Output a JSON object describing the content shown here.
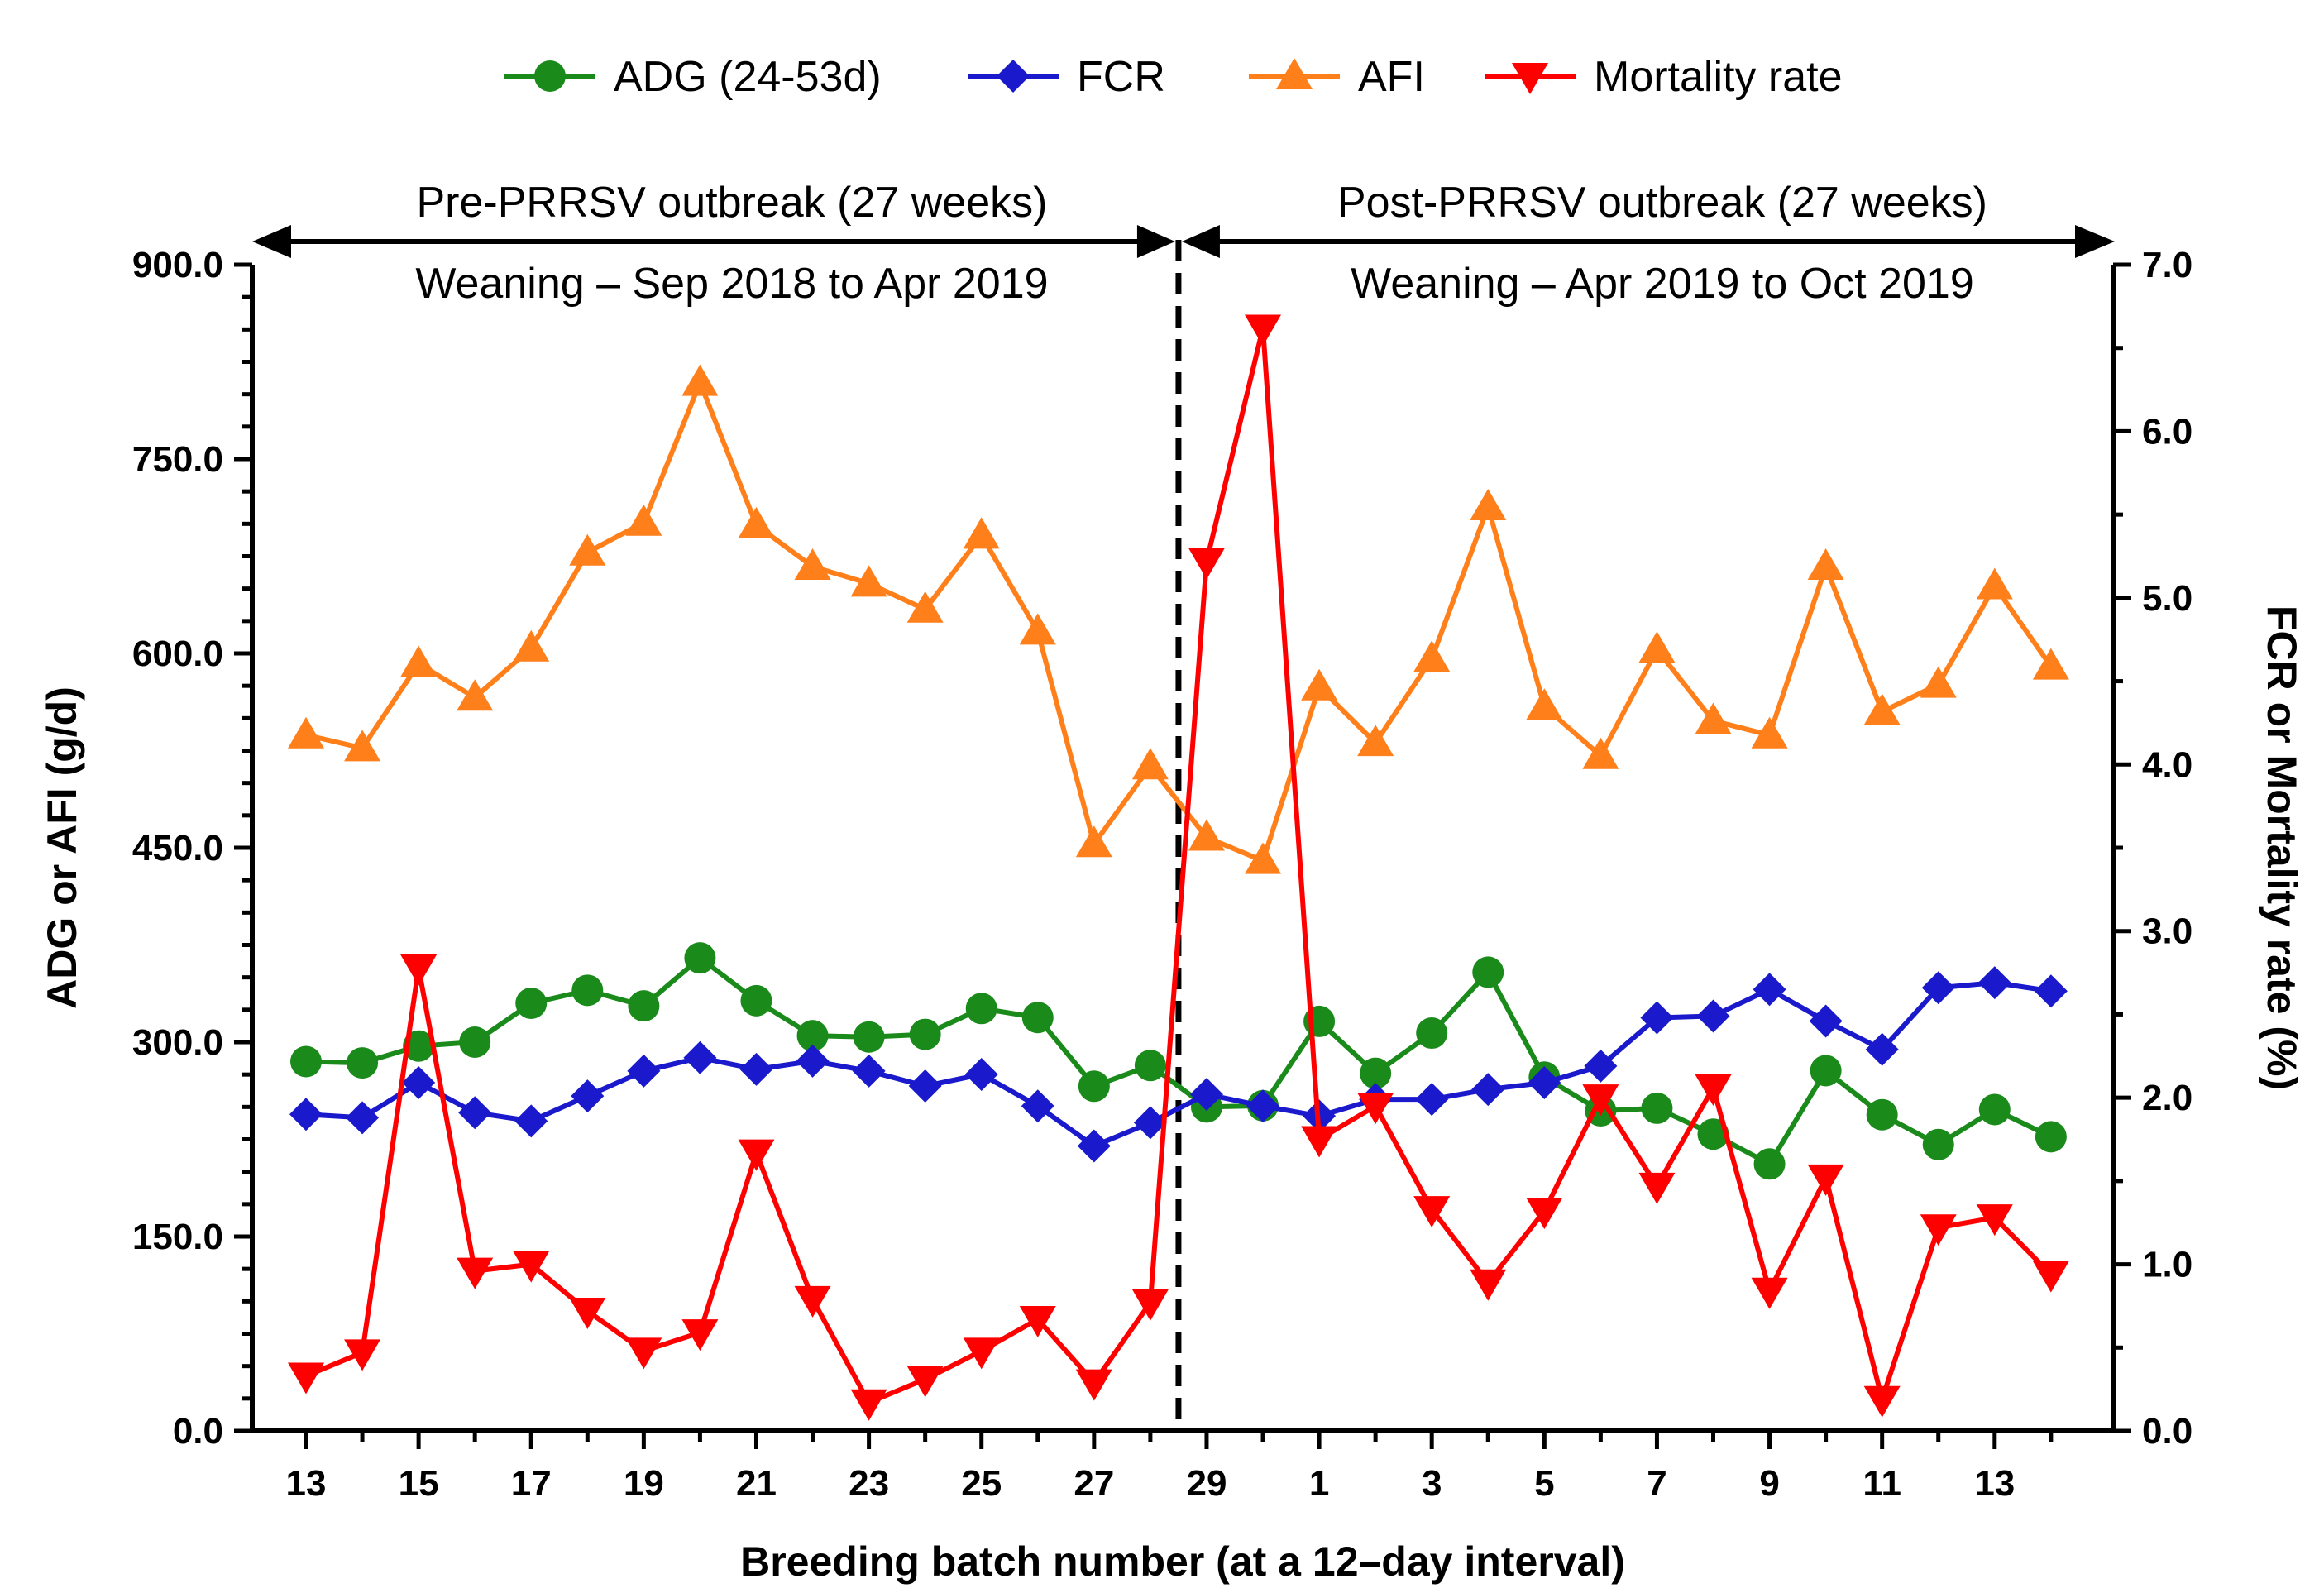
{
  "chart_data": {
    "type": "line",
    "xlabel": "Breeding batch number (at a 12–day interval)",
    "ylabel_left": "ADG or AFI (g/d)",
    "ylabel_right": "FCR or Mortality rate (%)",
    "ylim_left": [
      0,
      900
    ],
    "ylim_right": [
      0,
      7
    ],
    "yticks_left": [
      "0.0",
      "150.0",
      "300.0",
      "450.0",
      "600.0",
      "750.0",
      "900.0"
    ],
    "yticks_right": [
      "0.0",
      "1.0",
      "2.0",
      "3.0",
      "4.0",
      "5.0",
      "6.0",
      "7.0"
    ],
    "categories": [
      "13",
      "14",
      "15",
      "16",
      "17",
      "18",
      "19",
      "20",
      "21",
      "22",
      "23",
      "24",
      "25",
      "26",
      "27",
      "28",
      "29",
      "30",
      "1",
      "2",
      "3",
      "4",
      "5",
      "6",
      "7",
      "8",
      "9",
      "10",
      "11",
      "12",
      "13",
      "14"
    ],
    "xtick_labels": [
      "13",
      "15",
      "17",
      "19",
      "21",
      "23",
      "25",
      "27",
      "29",
      "1",
      "3",
      "5",
      "7",
      "9",
      "11",
      "13"
    ],
    "xtick_indices": [
      0,
      2,
      4,
      6,
      8,
      10,
      12,
      14,
      16,
      18,
      20,
      22,
      24,
      26,
      28,
      30
    ],
    "divider_after_index": 15,
    "annotations": {
      "pre_period": "Pre-PRRSV outbreak (27 weeks)",
      "pre_weaning": "Weaning – Sep 2018 to Apr 2019",
      "post_period": "Post-PRRSV outbreak (27 weeks)",
      "post_weaning": "Weaning – Apr 2019 to Oct 2019"
    },
    "series": [
      {
        "name": "ADG (24-53d)",
        "axis": "left",
        "color": "#1a8a1a",
        "marker": "circle",
        "values": [
          285,
          284,
          297,
          300,
          330,
          340,
          328,
          365,
          332,
          305,
          304,
          306,
          326,
          319,
          266,
          282,
          250,
          251,
          316,
          276,
          307,
          354,
          273,
          247,
          249,
          229,
          206,
          278,
          244,
          221,
          248,
          227
        ]
      },
      {
        "name": "FCR",
        "axis": "right",
        "color": "#1a1acc",
        "marker": "diamond",
        "values": [
          1.9,
          1.88,
          2.09,
          1.91,
          1.86,
          2.01,
          2.16,
          2.24,
          2.17,
          2.22,
          2.16,
          2.07,
          2.14,
          1.95,
          1.71,
          1.85,
          2.02,
          1.95,
          1.89,
          1.99,
          1.99,
          2.05,
          2.09,
          2.19,
          2.48,
          2.49,
          2.65,
          2.46,
          2.29,
          2.66,
          2.69,
          2.64
        ]
      },
      {
        "name": "AFI",
        "axis": "left",
        "color": "#ff7f1a",
        "marker": "triangle-up",
        "values": [
          537,
          527,
          592,
          566,
          604,
          678,
          701,
          809,
          699,
          667,
          654,
          634,
          691,
          617,
          453,
          513,
          458,
          440,
          574,
          531,
          596,
          713,
          559,
          521,
          603,
          548,
          537,
          667,
          555,
          576,
          652,
          590
        ]
      },
      {
        "name": "Mortality rate",
        "axis": "right",
        "color": "#ff0000",
        "marker": "triangle-down",
        "values": [
          0.33,
          0.47,
          2.78,
          0.96,
          1.0,
          0.72,
          0.48,
          0.59,
          1.67,
          0.79,
          0.17,
          0.31,
          0.48,
          0.67,
          0.29,
          0.77,
          5.22,
          6.62,
          1.75,
          1.95,
          1.33,
          0.89,
          1.32,
          2.0,
          1.47,
          2.06,
          0.84,
          1.52,
          0.19,
          1.22,
          1.28,
          0.94
        ]
      }
    ]
  }
}
